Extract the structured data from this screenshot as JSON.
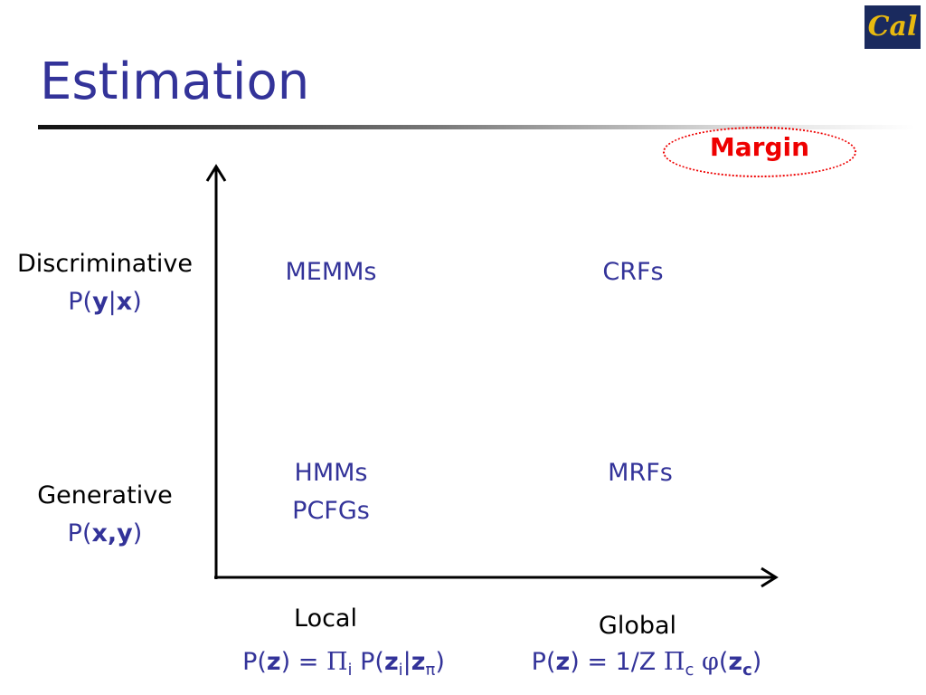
{
  "title": "Estimation",
  "logo": "Cal",
  "margin_label": "Margin",
  "y_axis": {
    "discriminative": {
      "label": "Discriminative",
      "formula": [
        {
          "text": "P("
        },
        {
          "text": "y",
          "style": "bold"
        },
        {
          "text": "|"
        },
        {
          "text": "x",
          "style": "bold"
        },
        {
          "text": ")"
        }
      ]
    },
    "generative": {
      "label": "Generative",
      "formula": [
        {
          "text": "P("
        },
        {
          "text": "x,y",
          "style": "bold"
        },
        {
          "text": ")"
        }
      ]
    }
  },
  "x_axis": {
    "local": {
      "label": "Local",
      "formula": [
        {
          "text": "P("
        },
        {
          "text": "z",
          "style": "bold"
        },
        {
          "text": ") = "
        },
        {
          "text": "Π",
          "style": "symbol"
        },
        {
          "text": "i",
          "style": "sub"
        },
        {
          "text": " P("
        },
        {
          "text": "z",
          "style": "bold"
        },
        {
          "text": "i",
          "style": "sub"
        },
        {
          "text": "|"
        },
        {
          "text": "z",
          "style": "bold"
        },
        {
          "text": "π",
          "style": "sub"
        },
        {
          "text": ")"
        }
      ]
    },
    "global": {
      "label": "Global",
      "formula": [
        {
          "text": "P("
        },
        {
          "text": "z",
          "style": "bold"
        },
        {
          "text": ") = 1/Z "
        },
        {
          "text": "Π",
          "style": "symbol"
        },
        {
          "text": "c",
          "style": "sub"
        },
        {
          "text": " "
        },
        {
          "text": "φ",
          "style": "symbol"
        },
        {
          "text": "("
        },
        {
          "text": "z",
          "style": "bold"
        },
        {
          "text": "c",
          "style": "sub-bold"
        },
        {
          "text": ")"
        }
      ]
    }
  },
  "cells": {
    "discriminative_local": [
      "MEMMs"
    ],
    "discriminative_global": [
      "CRFs"
    ],
    "generative_local": [
      "HMMs",
      "PCFGs"
    ],
    "generative_global": [
      "MRFs"
    ]
  }
}
